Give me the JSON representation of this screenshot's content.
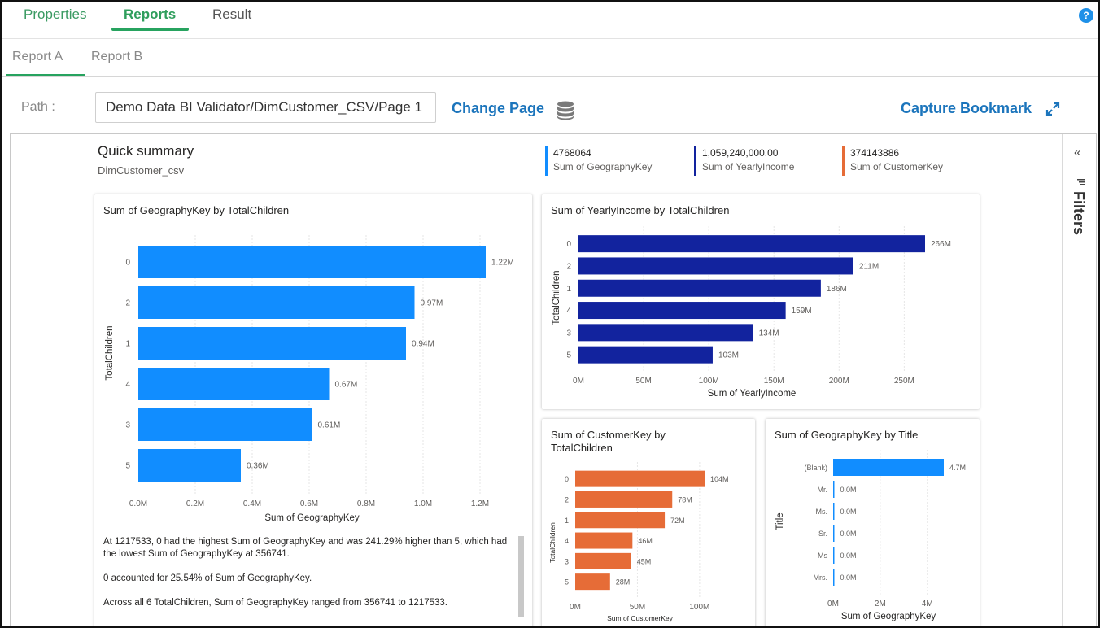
{
  "colors": {
    "green": "#27a35f",
    "link": "#1c75bc",
    "blue": "#118dff",
    "navy": "#12239e",
    "orange": "#e66c37"
  },
  "top_tabs": [
    {
      "label": "Properties"
    },
    {
      "label": "Reports"
    },
    {
      "label": "Result"
    }
  ],
  "help_label": "?",
  "sub_tabs": [
    {
      "label": "Report A"
    },
    {
      "label": "Report B"
    }
  ],
  "path": {
    "label": "Path :",
    "value": "Demo Data BI Validator/DimCustomer_CSV/Page 1"
  },
  "change_page_label": "Change Page",
  "capture_bookmark_label": "Capture Bookmark",
  "filters": {
    "collapse": "«",
    "label": "Filters"
  },
  "quick_summary": {
    "title": "Quick summary",
    "subtitle": "DimCustomer_csv",
    "kpis": [
      {
        "value": "4768064",
        "label": "Sum of GeographyKey",
        "color": "#118dff"
      },
      {
        "value": "1,059,240,000.00",
        "label": "Sum of YearlyIncome",
        "color": "#12239e"
      },
      {
        "value": "374143886",
        "label": "Sum of CustomerKey",
        "color": "#e66c37"
      }
    ]
  },
  "chart_data": [
    {
      "type": "bar",
      "orientation": "horizontal",
      "title": "Sum of GeographyKey by TotalChildren",
      "xlabel": "Sum of GeographyKey",
      "ylabel": "TotalChildren",
      "categories": [
        "0",
        "2",
        "1",
        "4",
        "3",
        "5"
      ],
      "values": [
        1.22,
        0.97,
        0.94,
        0.67,
        0.61,
        0.36
      ],
      "data_labels": [
        "1.22M",
        "0.97M",
        "0.94M",
        "0.67M",
        "0.61M",
        "0.36M"
      ],
      "ticks": [
        "0.0M",
        "0.2M",
        "0.4M",
        "0.6M",
        "0.8M",
        "1.0M",
        "1.2M"
      ],
      "xlim": [
        0,
        1.22
      ],
      "color": "#118dff",
      "narrative": [
        "At 1217533, 0 had the highest Sum of GeographyKey and was 241.29% higher than 5, which had the lowest Sum of GeographyKey at 356741.",
        "0 accounted for 25.54% of Sum of GeographyKey.",
        "Across all 6 TotalChildren, Sum of GeographyKey ranged from 356741 to 1217533."
      ]
    },
    {
      "type": "bar",
      "orientation": "horizontal",
      "title": "Sum of YearlyIncome by TotalChildren",
      "xlabel": "Sum of YearlyIncome",
      "ylabel": "TotalChildren",
      "categories": [
        "0",
        "2",
        "1",
        "4",
        "3",
        "5"
      ],
      "values": [
        266,
        211,
        186,
        159,
        134,
        103
      ],
      "data_labels": [
        "266M",
        "211M",
        "186M",
        "159M",
        "134M",
        "103M"
      ],
      "ticks": [
        "0M",
        "50M",
        "100M",
        "150M",
        "200M",
        "250M"
      ],
      "xlim": [
        0,
        266
      ],
      "color": "#12239e"
    },
    {
      "type": "bar",
      "orientation": "horizontal",
      "title": "Sum of CustomerKey by TotalChildren",
      "xlabel": "Sum of CustomerKey",
      "ylabel": "TotalChildren",
      "categories": [
        "0",
        "2",
        "1",
        "4",
        "3",
        "5"
      ],
      "values": [
        104,
        78,
        72,
        46,
        45,
        28
      ],
      "data_labels": [
        "104M",
        "78M",
        "72M",
        "46M",
        "45M",
        "28M"
      ],
      "ticks": [
        "0M",
        "50M",
        "100M"
      ],
      "xlim": [
        0,
        104
      ],
      "color": "#e66c37"
    },
    {
      "type": "bar",
      "orientation": "horizontal",
      "title": "Sum of GeographyKey by Title",
      "xlabel": "Sum of GeographyKey",
      "ylabel": "Title",
      "categories": [
        "(Blank)",
        "Mr.",
        "Ms.",
        "Sr.",
        "Ms",
        "Mrs."
      ],
      "values": [
        4.7,
        0.0,
        0.0,
        0.0,
        0.0,
        0.0
      ],
      "data_labels": [
        "4.7M",
        "0.0M",
        "0.0M",
        "0.0M",
        "0.0M",
        "0.0M"
      ],
      "ticks": [
        "0M",
        "2M",
        "4M"
      ],
      "xlim": [
        0,
        4.7
      ],
      "color": "#118dff"
    }
  ]
}
